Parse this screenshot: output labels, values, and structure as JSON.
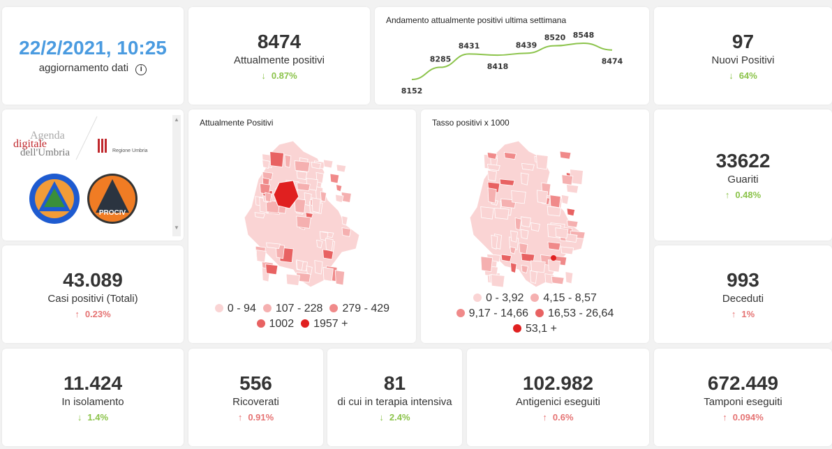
{
  "update": {
    "datetime": "22/2/2021, 10:25",
    "label": "aggiornamento dati",
    "icon": "info-icon"
  },
  "kpis": {
    "attualmente_positivi": {
      "value": "8474",
      "label": "Attualmente positivi",
      "change": "0.87%",
      "direction": "down"
    },
    "nuovi_positivi": {
      "value": "97",
      "label": "Nuovi Positivi",
      "change": "64%",
      "direction": "down"
    },
    "guariti": {
      "value": "33622",
      "label": "Guariti",
      "change": "0.48%",
      "direction": "up-green"
    },
    "casi_totali": {
      "value": "43.089",
      "label": "Casi positivi (Totali)",
      "change": "0.23%",
      "direction": "up"
    },
    "deceduti": {
      "value": "993",
      "label": "Deceduti",
      "change": "1%",
      "direction": "up"
    },
    "isolamento": {
      "value": "11.424",
      "label": "In isolamento",
      "change": "1.4%",
      "direction": "down"
    },
    "ricoverati": {
      "value": "556",
      "label": "Ricoverati",
      "change": "0.91%",
      "direction": "up"
    },
    "terapia": {
      "value": "81",
      "label": "di cui in terapia intensiva",
      "change": "2.4%",
      "direction": "down"
    },
    "antigenici": {
      "value": "102.982",
      "label": "Antigenici eseguiti",
      "change": "0.6%",
      "direction": "up"
    },
    "tamponi": {
      "value": "672.449",
      "label": "Tamponi eseguiti",
      "change": "0.094%",
      "direction": "up"
    }
  },
  "trend": {
    "title": "Andamento attualmente positivi ultima settimana",
    "color": "#8bc34a"
  },
  "chart_data": {
    "type": "line",
    "title": "Andamento attualmente positivi ultima settimana",
    "values": [
      8152,
      8285,
      8431,
      8418,
      8439,
      8520,
      8548,
      8474
    ]
  },
  "logos": {
    "agenda": "Agenda digitale dell'Umbria",
    "regione": "Regione Umbria",
    "protezione": "Protezione civile Regione Umbria",
    "anci": "ANCI UMBRIA PROCIV"
  },
  "map1": {
    "title": "Attualmente Positivi",
    "legend": [
      {
        "label": "0 - 94",
        "color": "#fad4d4"
      },
      {
        "label": "107 - 228",
        "color": "#f5b0b0"
      },
      {
        "label": "279 - 429",
        "color": "#f08a8a"
      },
      {
        "label": "1002",
        "color": "#e86262"
      },
      {
        "label": "1957 +",
        "color": "#e02020"
      }
    ]
  },
  "map2": {
    "title": "Tasso positivi x 1000",
    "legend": [
      {
        "label": "0 - 3,92",
        "color": "#fad4d4"
      },
      {
        "label": "4,15 - 8,57",
        "color": "#f5b0b0"
      },
      {
        "label": "9,17 - 14,66",
        "color": "#f08a8a"
      },
      {
        "label": "16,53 - 26,64",
        "color": "#e86262"
      },
      {
        "label": "53,1 +",
        "color": "#e02020"
      }
    ]
  }
}
